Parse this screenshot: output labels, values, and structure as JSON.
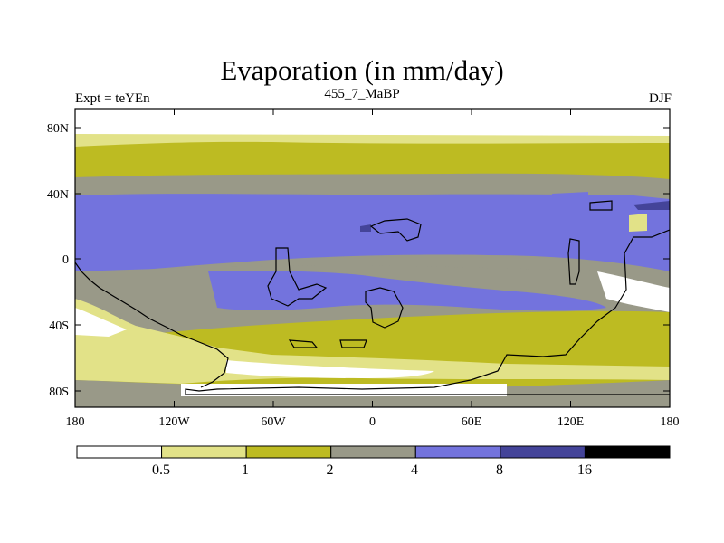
{
  "title": "Evaporation (in mm/day)",
  "subtitle_left": "Expt = teYEn",
  "subtitle_center": "455_7_MaBP",
  "subtitle_right": "DJF",
  "map": {
    "type": "filled-contour map",
    "variable": "Evaporation",
    "units": "mm/day",
    "lon_range": [
      -180,
      180
    ],
    "lat_range": [
      -90,
      90
    ],
    "x_ticks": [
      "180",
      "120W",
      "60W",
      "0",
      "60E",
      "120E",
      "180"
    ],
    "y_ticks": [
      "80N",
      "40N",
      "0",
      "40S",
      "80S"
    ],
    "coastline_color": "#000000"
  },
  "colorbar": {
    "levels": [
      "0.5",
      "1",
      "2",
      "4",
      "8",
      "16"
    ],
    "colors": [
      "#ffffff",
      "#e2e288",
      "#bdbb22",
      "#999988",
      "#7373dd",
      "#444499",
      "#000000"
    ]
  }
}
